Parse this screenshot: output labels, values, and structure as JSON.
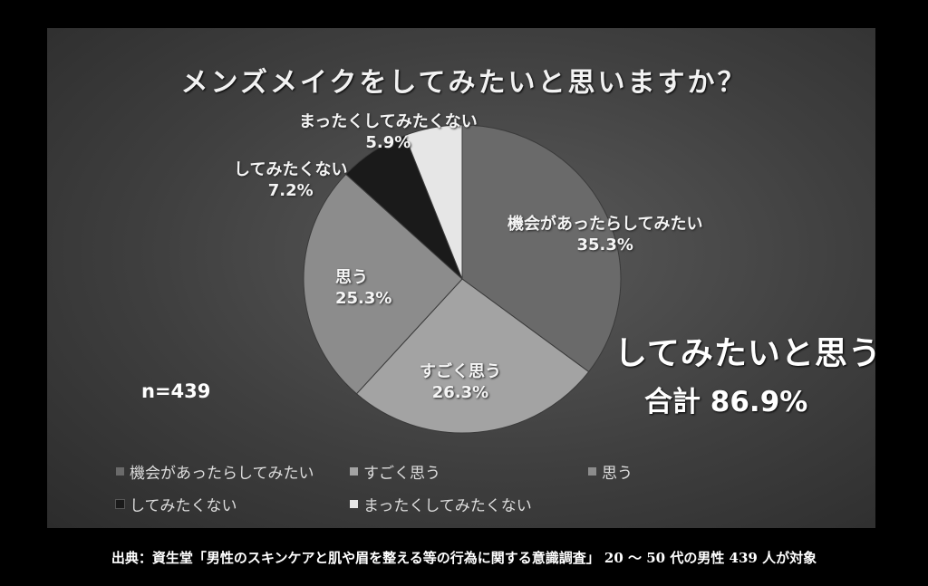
{
  "chart_data": {
    "type": "pie",
    "title": "メンズメイクをしてみたいと思いますか？",
    "slices": [
      {
        "label": "機会があったらしてみたい",
        "value": 35.3,
        "display": "35.3%",
        "color": "#6a6a6a"
      },
      {
        "label": "すごく思う",
        "value": 26.3,
        "display": "26.3%",
        "color": "#a3a3a3"
      },
      {
        "label": "思う",
        "value": 25.3,
        "display": "25.3%",
        "color": "#8c8c8c"
      },
      {
        "label": "してみたくない",
        "value": 7.2,
        "display": "7.2%",
        "color": "#1a1a1a"
      },
      {
        "label": "まったくしてみたくない",
        "value": 5.9,
        "display": "5.9%",
        "color": "#e6e6e6"
      }
    ],
    "legend_position": "bottom",
    "annotations": {
      "n": "n=439",
      "callout_line1": "してみたいと思う",
      "callout_line2": "合計 86.9%"
    }
  },
  "source": "出典：資生堂「男性のスキンケアと肌や眉を整える等の行為に関する意識調査」 20 ～ 50 代の男性 439 人が対象"
}
